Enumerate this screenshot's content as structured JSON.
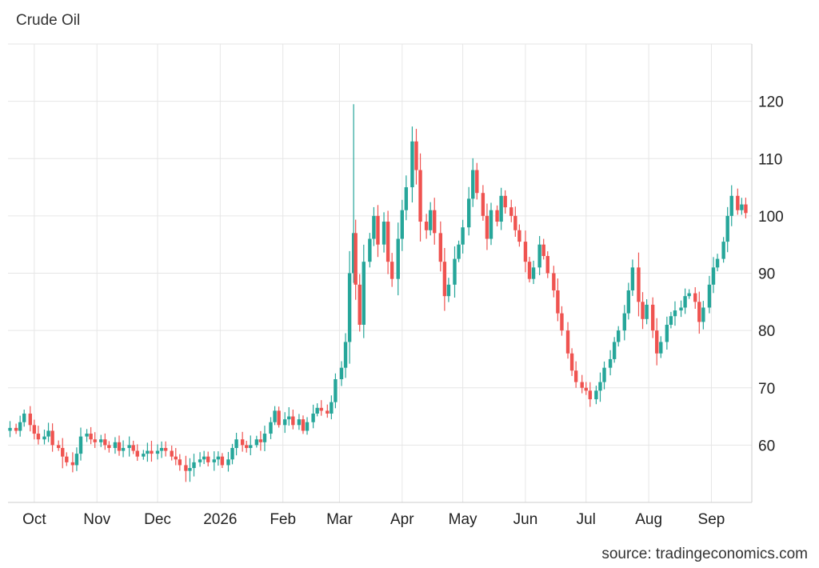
{
  "title": "Crude Oil",
  "source": "source: tradingeconomics.com",
  "colors": {
    "up": "#26a69a",
    "down": "#ef5350",
    "grid": "#e6e6e6",
    "axis": "#cccccc"
  },
  "chart_data": {
    "type": "candlestick",
    "title": "Crude Oil",
    "ylim": [
      50,
      130
    ],
    "yticks": [
      60,
      70,
      80,
      90,
      100,
      110,
      120
    ],
    "x_domain": [
      "2025-09-18",
      "2026-09-21"
    ],
    "xticks": [
      {
        "label": "Oct",
        "date": "2025-10-01"
      },
      {
        "label": "Nov",
        "date": "2025-11-01"
      },
      {
        "label": "Dec",
        "date": "2025-12-01"
      },
      {
        "label": "2026",
        "date": "2026-01-01"
      },
      {
        "label": "Feb",
        "date": "2026-02-01"
      },
      {
        "label": "Mar",
        "date": "2026-03-01"
      },
      {
        "label": "Apr",
        "date": "2026-04-01"
      },
      {
        "label": "May",
        "date": "2026-05-01"
      },
      {
        "label": "Jun",
        "date": "2026-06-01"
      },
      {
        "label": "Jul",
        "date": "2026-07-01"
      },
      {
        "label": "Aug",
        "date": "2026-08-01"
      },
      {
        "label": "Sep",
        "date": "2026-09-01"
      }
    ],
    "grid": true,
    "close_series": [
      [
        "2025-09-19",
        63.0
      ],
      [
        "2025-09-22",
        62.5
      ],
      [
        "2025-09-24",
        64.0
      ],
      [
        "2025-09-26",
        65.5
      ],
      [
        "2025-09-29",
        63.5
      ],
      [
        "2025-10-01",
        62.0
      ],
      [
        "2025-10-03",
        61.0
      ],
      [
        "2025-10-06",
        61.5
      ],
      [
        "2025-10-08",
        62.5
      ],
      [
        "2025-10-10",
        60.0
      ],
      [
        "2025-10-13",
        59.5
      ],
      [
        "2025-10-15",
        58.0
      ],
      [
        "2025-10-17",
        57.0
      ],
      [
        "2025-10-20",
        56.5
      ],
      [
        "2025-10-22",
        58.5
      ],
      [
        "2025-10-24",
        61.5
      ],
      [
        "2025-10-27",
        62.0
      ],
      [
        "2025-10-29",
        61.0
      ],
      [
        "2025-10-31",
        60.5
      ],
      [
        "2025-11-03",
        61.0
      ],
      [
        "2025-11-05",
        60.0
      ],
      [
        "2025-11-07",
        59.5
      ],
      [
        "2025-11-10",
        60.5
      ],
      [
        "2025-11-12",
        59.0
      ],
      [
        "2025-11-14",
        59.5
      ],
      [
        "2025-11-17",
        60.0
      ],
      [
        "2025-11-19",
        59.0
      ],
      [
        "2025-11-21",
        58.0
      ],
      [
        "2025-11-24",
        58.5
      ],
      [
        "2025-11-26",
        59.0
      ],
      [
        "2025-11-28",
        58.5
      ],
      [
        "2025-12-01",
        59.0
      ],
      [
        "2025-12-03",
        59.5
      ],
      [
        "2025-12-05",
        59.0
      ],
      [
        "2025-12-08",
        58.0
      ],
      [
        "2025-12-10",
        57.5
      ],
      [
        "2025-12-12",
        56.5
      ],
      [
        "2025-12-15",
        55.5
      ],
      [
        "2025-12-17",
        56.0
      ],
      [
        "2025-12-19",
        57.0
      ],
      [
        "2025-12-22",
        57.5
      ],
      [
        "2025-12-24",
        58.0
      ],
      [
        "2025-12-26",
        57.0
      ],
      [
        "2025-12-29",
        57.5
      ],
      [
        "2025-12-31",
        58.0
      ],
      [
        "2026-01-02",
        56.5
      ],
      [
        "2026-01-05",
        57.5
      ],
      [
        "2026-01-07",
        59.5
      ],
      [
        "2026-01-09",
        61.0
      ],
      [
        "2026-01-12",
        60.0
      ],
      [
        "2026-01-14",
        59.5
      ],
      [
        "2026-01-16",
        60.0
      ],
      [
        "2026-01-19",
        61.0
      ],
      [
        "2026-01-21",
        60.5
      ],
      [
        "2026-01-23",
        62.0
      ],
      [
        "2026-01-26",
        64.0
      ],
      [
        "2026-01-28",
        66.0
      ],
      [
        "2026-01-30",
        63.5
      ],
      [
        "2026-02-02",
        64.5
      ],
      [
        "2026-02-04",
        65.0
      ],
      [
        "2026-02-06",
        63.5
      ],
      [
        "2026-02-09",
        64.5
      ],
      [
        "2026-02-11",
        62.5
      ],
      [
        "2026-02-13",
        64.0
      ],
      [
        "2026-02-16",
        65.5
      ],
      [
        "2026-02-18",
        66.5
      ],
      [
        "2026-02-20",
        66.0
      ],
      [
        "2026-02-23",
        65.5
      ],
      [
        "2026-02-25",
        67.5
      ],
      [
        "2026-02-27",
        71.5
      ],
      [
        "2026-03-02",
        73.5
      ],
      [
        "2026-03-04",
        78.0
      ],
      [
        "2026-03-06",
        90.0
      ],
      [
        "2026-03-08",
        97.0
      ],
      [
        "2026-03-09",
        88.0
      ],
      [
        "2026-03-11",
        81.0
      ],
      [
        "2026-03-13",
        92.0
      ],
      [
        "2026-03-16",
        96.0
      ],
      [
        "2026-03-18",
        100.0
      ],
      [
        "2026-03-20",
        95.0
      ],
      [
        "2026-03-23",
        99.0
      ],
      [
        "2026-03-25",
        92.0
      ],
      [
        "2026-03-27",
        89.0
      ],
      [
        "2026-03-30",
        96.0
      ],
      [
        "2026-04-01",
        101.0
      ],
      [
        "2026-04-03",
        105.0
      ],
      [
        "2026-04-06",
        113.0
      ],
      [
        "2026-04-08",
        108.0
      ],
      [
        "2026-04-10",
        99.0
      ],
      [
        "2026-04-13",
        97.5
      ],
      [
        "2026-04-15",
        101.0
      ],
      [
        "2026-04-17",
        97.0
      ],
      [
        "2026-04-20",
        92.0
      ],
      [
        "2026-04-22",
        86.0
      ],
      [
        "2026-04-24",
        88.0
      ],
      [
        "2026-04-27",
        92.5
      ],
      [
        "2026-04-29",
        95.0
      ],
      [
        "2026-05-01",
        98.0
      ],
      [
        "2026-05-04",
        103.0
      ],
      [
        "2026-05-06",
        108.0
      ],
      [
        "2026-05-08",
        104.0
      ],
      [
        "2026-05-11",
        100.0
      ],
      [
        "2026-05-13",
        96.0
      ],
      [
        "2026-05-15",
        101.0
      ],
      [
        "2026-05-18",
        99.0
      ],
      [
        "2026-05-20",
        103.5
      ],
      [
        "2026-05-22",
        101.5
      ],
      [
        "2026-05-25",
        100.0
      ],
      [
        "2026-05-27",
        97.5
      ],
      [
        "2026-05-29",
        95.5
      ],
      [
        "2026-06-01",
        92.0
      ],
      [
        "2026-06-03",
        89.0
      ],
      [
        "2026-06-05",
        91.0
      ],
      [
        "2026-06-08",
        95.0
      ],
      [
        "2026-06-10",
        93.0
      ],
      [
        "2026-06-12",
        90.0
      ],
      [
        "2026-06-15",
        87.0
      ],
      [
        "2026-06-17",
        83.0
      ],
      [
        "2026-06-19",
        80.0
      ],
      [
        "2026-06-22",
        76.0
      ],
      [
        "2026-06-24",
        73.0
      ],
      [
        "2026-06-26",
        71.0
      ],
      [
        "2026-06-29",
        70.0
      ],
      [
        "2026-07-01",
        69.5
      ],
      [
        "2026-07-03",
        68.0
      ],
      [
        "2026-07-06",
        69.5
      ],
      [
        "2026-07-08",
        71.0
      ],
      [
        "2026-07-10",
        73.5
      ],
      [
        "2026-07-13",
        75.0
      ],
      [
        "2026-07-15",
        78.0
      ],
      [
        "2026-07-17",
        80.0
      ],
      [
        "2026-07-20",
        83.0
      ],
      [
        "2026-07-22",
        87.0
      ],
      [
        "2026-07-24",
        91.0
      ],
      [
        "2026-07-27",
        85.0
      ],
      [
        "2026-07-29",
        82.0
      ],
      [
        "2026-07-31",
        84.5
      ],
      [
        "2026-08-03",
        80.0
      ],
      [
        "2026-08-05",
        76.0
      ],
      [
        "2026-08-07",
        78.0
      ],
      [
        "2026-08-10",
        81.0
      ],
      [
        "2026-08-12",
        82.5
      ],
      [
        "2026-08-14",
        83.5
      ],
      [
        "2026-08-17",
        84.0
      ],
      [
        "2026-08-19",
        86.0
      ],
      [
        "2026-08-21",
        86.5
      ],
      [
        "2026-08-24",
        85.0
      ],
      [
        "2026-08-26",
        81.5
      ],
      [
        "2026-08-28",
        84.0
      ],
      [
        "2026-08-31",
        88.0
      ],
      [
        "2026-09-02",
        91.0
      ],
      [
        "2026-09-04",
        92.5
      ],
      [
        "2026-09-07",
        95.5
      ],
      [
        "2026-09-09",
        100.0
      ],
      [
        "2026-09-11",
        103.5
      ],
      [
        "2026-09-14",
        101.0
      ],
      [
        "2026-09-16",
        102.0
      ],
      [
        "2026-09-18",
        100.5
      ]
    ]
  }
}
